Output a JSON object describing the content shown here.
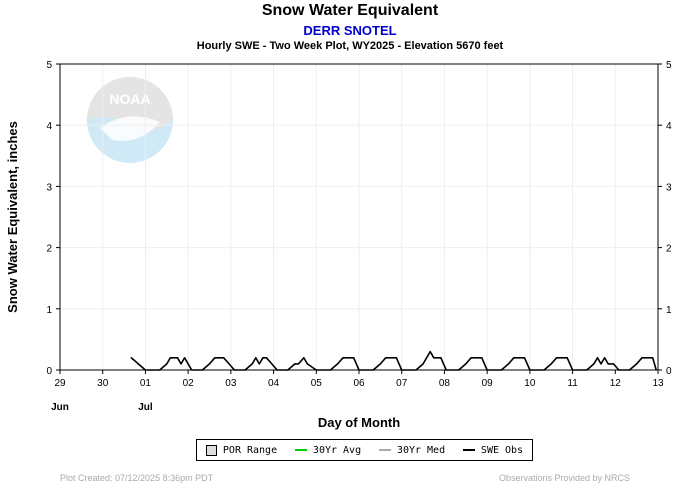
{
  "header": {
    "title": "Snow Water Equivalent",
    "station": "DERR SNOTEL",
    "subtitle": "Hourly SWE - Two Week Plot, WY2025 -  Elevation 5670 feet"
  },
  "footer": {
    "created": "Plot Created: 07/12/2025 8:36pm PDT",
    "credit": "Observations Provided by NRCS"
  },
  "colors": {
    "station": "#0000cc",
    "obs": "#000000",
    "avg": "#00cc00",
    "median": "#aaaaaa",
    "grid": "#eeeeee"
  },
  "chart_data": {
    "type": "line",
    "ylabel": "Snow Water Equivalent, inches",
    "xlabel": "Day of Month",
    "ylim": [
      0,
      5
    ],
    "yticks": [
      "0",
      "1",
      "2",
      "3",
      "4",
      "5"
    ],
    "xlim": [
      "2025-06-29",
      "2025-07-13"
    ],
    "xticks": [
      "29",
      "30",
      "01",
      "02",
      "03",
      "04",
      "05",
      "06",
      "07",
      "08",
      "09",
      "10",
      "11",
      "12",
      "13"
    ],
    "month_labels": [
      {
        "label": "Jun",
        "date": "2025-06-29"
      },
      {
        "label": "Jul",
        "date": "2025-07-01"
      }
    ],
    "grid": true,
    "logo": "NOAA",
    "legend": {
      "placement": "bottom",
      "items": [
        {
          "label": "POR Range",
          "kind": "box"
        },
        {
          "label": "30Yr Avg",
          "kind": "line",
          "color": "#00cc00"
        },
        {
          "label": "30Yr Med",
          "kind": "line",
          "color": "#aaaaaa"
        },
        {
          "label": "SWE Obs",
          "kind": "line",
          "color": "#000000"
        }
      ]
    },
    "series": [
      {
        "name": "SWE Obs",
        "x": [
          "2025-06-30 16:00",
          "2025-06-30 18:00",
          "2025-06-30 20:00",
          "2025-07-01 00:00",
          "2025-07-01 04:00",
          "2025-07-01 08:00",
          "2025-07-01 12:00",
          "2025-07-01 14:00",
          "2025-07-01 18:00",
          "2025-07-01 20:00",
          "2025-07-01 22:00",
          "2025-07-02 02:00",
          "2025-07-02 08:00",
          "2025-07-02 12:00",
          "2025-07-02 15:00",
          "2025-07-02 20:00",
          "2025-07-02 23:00",
          "2025-07-03 02:00",
          "2025-07-03 08:00",
          "2025-07-03 12:00",
          "2025-07-03 14:00",
          "2025-07-03 16:00",
          "2025-07-03 18:00",
          "2025-07-03 20:00",
          "2025-07-03 23:00",
          "2025-07-04 02:00",
          "2025-07-04 08:00",
          "2025-07-04 12:00",
          "2025-07-04 14:00",
          "2025-07-04 17:00",
          "2025-07-04 19:00",
          "2025-07-05 00:00",
          "2025-07-05 08:00",
          "2025-07-05 12:00",
          "2025-07-05 15:00",
          "2025-07-05 21:00",
          "2025-07-06 00:00",
          "2025-07-06 08:00",
          "2025-07-06 12:00",
          "2025-07-06 15:00",
          "2025-07-06 21:00",
          "2025-07-07 00:00",
          "2025-07-07 08:00",
          "2025-07-07 12:00",
          "2025-07-07 14:00",
          "2025-07-07 16:00",
          "2025-07-07 18:00",
          "2025-07-07 22:00",
          "2025-07-08 01:00",
          "2025-07-08 08:00",
          "2025-07-08 12:00",
          "2025-07-08 15:00",
          "2025-07-08 21:00",
          "2025-07-09 00:00",
          "2025-07-09 08:00",
          "2025-07-09 12:00",
          "2025-07-09 15:00",
          "2025-07-09 21:00",
          "2025-07-10 00:00",
          "2025-07-10 08:00",
          "2025-07-10 12:00",
          "2025-07-10 15:00",
          "2025-07-10 21:00",
          "2025-07-11 00:00",
          "2025-07-11 08:00",
          "2025-07-11 12:00",
          "2025-07-11 14:00",
          "2025-07-11 16:00",
          "2025-07-11 18:00",
          "2025-07-11 20:00",
          "2025-07-11 23:00",
          "2025-07-12 02:00",
          "2025-07-12 08:00",
          "2025-07-12 12:00",
          "2025-07-12 15:00",
          "2025-07-12 21:00",
          "2025-07-12 23:00"
        ],
        "y": [
          0.2,
          0.15,
          0.1,
          0,
          0,
          0,
          0.1,
          0.2,
          0.2,
          0.1,
          0.2,
          0,
          0,
          0.1,
          0.2,
          0.2,
          0.1,
          0,
          0,
          0.1,
          0.2,
          0.1,
          0.2,
          0.2,
          0.1,
          0,
          0,
          0.1,
          0.1,
          0.2,
          0.1,
          0,
          0,
          0.1,
          0.2,
          0.2,
          0,
          0,
          0.1,
          0.2,
          0.2,
          0,
          0,
          0.1,
          0.2,
          0.3,
          0.2,
          0.2,
          0,
          0,
          0.1,
          0.2,
          0.2,
          0,
          0,
          0.1,
          0.2,
          0.2,
          0,
          0,
          0.1,
          0.2,
          0.2,
          0,
          0,
          0.1,
          0.2,
          0.1,
          0.2,
          0.1,
          0.1,
          0,
          0,
          0.1,
          0.2,
          0.2,
          0
        ]
      }
    ]
  }
}
